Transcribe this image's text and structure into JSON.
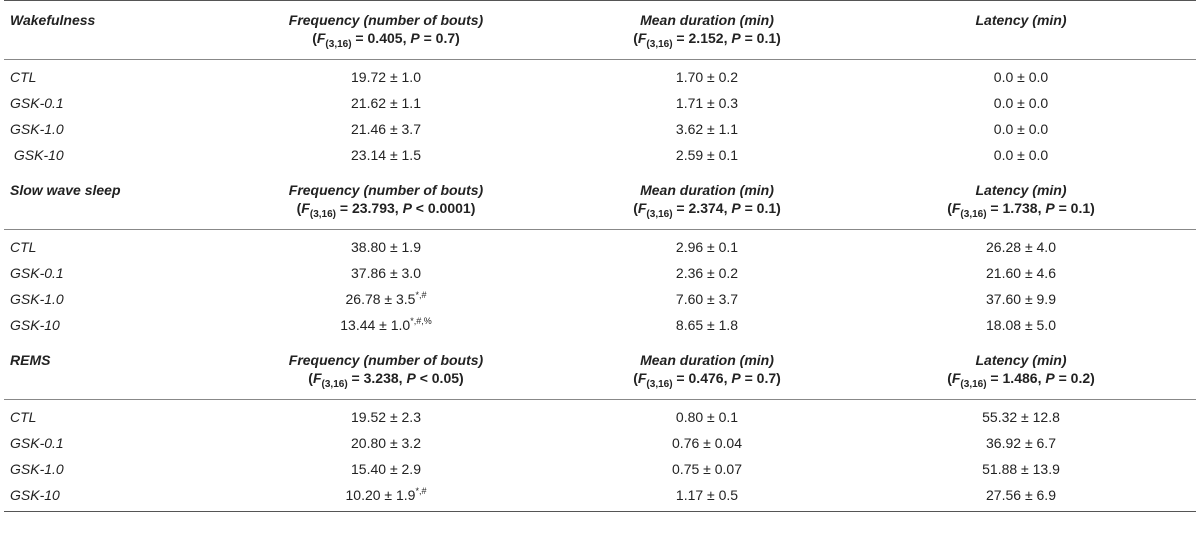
{
  "sections": [
    {
      "title": "Wakefulness",
      "headers": [
        {
          "title": "Frequency (number of bouts)",
          "f_value": "0.405",
          "p_op": "=",
          "p_value": "0.7"
        },
        {
          "title": "Mean duration (min)",
          "f_value": "2.152",
          "p_op": "=",
          "p_value": "0.1"
        },
        {
          "title": "Latency (min)"
        }
      ],
      "rows": [
        {
          "group": "CTL",
          "freq": "19.72 ± 1.0",
          "freq_sup": "",
          "dur": "1.70 ± 0.2",
          "lat": "0.0 ± 0.0"
        },
        {
          "group": "GSK-0.1",
          "freq": "21.62 ± 1.1",
          "freq_sup": "",
          "dur": "1.71 ± 0.3",
          "lat": "0.0 ± 0.0"
        },
        {
          "group": "GSK-1.0",
          "freq": "21.46 ± 3.7",
          "freq_sup": "",
          "dur": "3.62 ± 1.1",
          "lat": "0.0 ± 0.0"
        },
        {
          "group": " GSK-10",
          "freq": "23.14 ± 1.5",
          "freq_sup": "",
          "dur": "2.59 ± 0.1",
          "lat": "0.0 ± 0.0"
        }
      ]
    },
    {
      "title": "Slow wave sleep",
      "headers": [
        {
          "title": "Frequency (number of bouts)",
          "f_value": "23.793",
          "p_op": "<",
          "p_value": "0.0001"
        },
        {
          "title": "Mean duration (min)",
          "f_value": "2.374",
          "p_op": "=",
          "p_value": "0.1"
        },
        {
          "title": "Latency (min)",
          "f_value": "1.738",
          "p_op": "=",
          "p_value": "0.1"
        }
      ],
      "rows": [
        {
          "group": "CTL",
          "freq": "38.80 ± 1.9",
          "freq_sup": "",
          "dur": "2.96 ± 0.1",
          "lat": "26.28 ± 4.0"
        },
        {
          "group": "GSK-0.1",
          "freq": "37.86 ± 3.0",
          "freq_sup": "",
          "dur": "2.36 ± 0.2",
          "lat": "21.60 ± 4.6"
        },
        {
          "group": "GSK-1.0",
          "freq": "26.78 ± 3.5",
          "freq_sup": "*,#",
          "dur": "7.60 ± 3.7",
          "lat": "37.60 ± 9.9"
        },
        {
          "group": "GSK-10",
          "freq": "13.44 ± 1.0",
          "freq_sup": "*,#,%",
          "dur": "8.65 ± 1.8",
          "lat": "18.08 ± 5.0"
        }
      ]
    },
    {
      "title": "REMS",
      "headers": [
        {
          "title": "Frequency (number of bouts)",
          "f_value": "3.238",
          "p_op": "<",
          "p_value": "0.05"
        },
        {
          "title": "Mean duration (min)",
          "f_value": "0.476",
          "p_op": "=",
          "p_value": "0.7"
        },
        {
          "title": "Latency (min)",
          "f_value": "1.486",
          "p_op": "=",
          "p_value": "0.2"
        }
      ],
      "rows": [
        {
          "group": "CTL",
          "freq": "19.52 ± 2.3",
          "freq_sup": "",
          "dur": "0.80 ± 0.1",
          "lat": "55.32 ± 12.8"
        },
        {
          "group": "GSK-0.1",
          "freq": "20.80 ± 3.2",
          "freq_sup": "",
          "dur": "0.76 ± 0.04",
          "lat": "36.92 ± 6.7"
        },
        {
          "group": "GSK-1.0",
          "freq": "15.40 ± 2.9",
          "freq_sup": "",
          "dur": "0.75 ± 0.07",
          "lat": "51.88 ± 13.9"
        },
        {
          "group": "GSK-10",
          "freq": "10.20 ± 1.9",
          "freq_sup": "*,#",
          "dur": "1.17 ± 0.5",
          "lat": "27.56 ± 6.9"
        }
      ]
    }
  ],
  "stat_df": "(3,16)"
}
